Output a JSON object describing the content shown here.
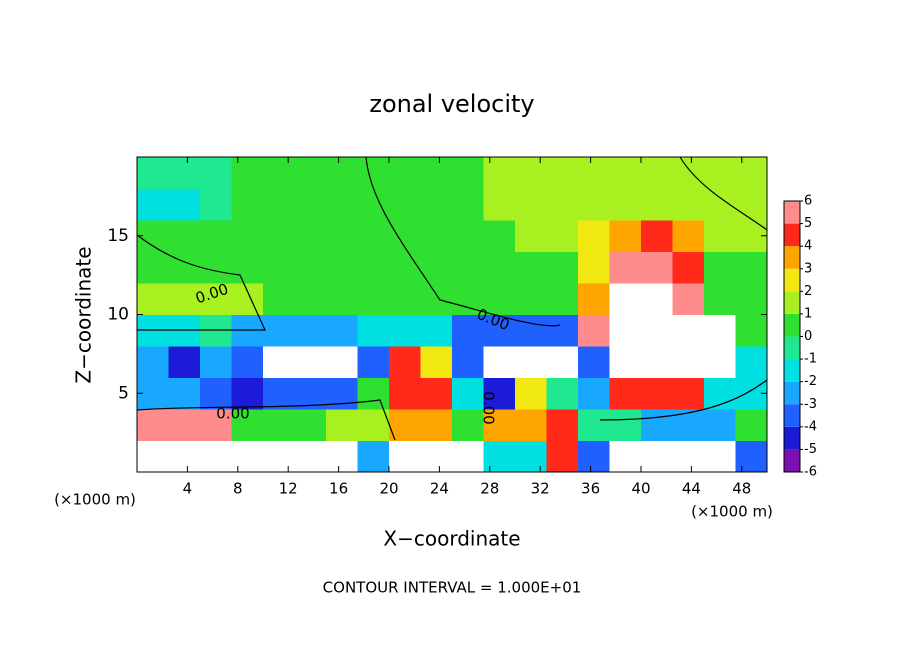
{
  "chart_data": {
    "type": "heatmap",
    "title": "zonal velocity",
    "x_label": "X−coordinate",
    "y_label": "Z−coordinate",
    "x_unit_label": "(×1000 m)",
    "footnote": "CONTOUR INTERVAL = 1.000E+01",
    "contour_labels": [
      "0.00",
      "0.00",
      "0.00",
      "0.00"
    ],
    "xlim": [
      0,
      50
    ],
    "ylim": [
      0,
      20
    ],
    "xticks": [
      4,
      8,
      12,
      16,
      20,
      24,
      28,
      32,
      36,
      40,
      44,
      48
    ],
    "yticks": [
      5,
      10,
      15
    ],
    "x": [
      1.25,
      3.75,
      6.25,
      8.75,
      11.25,
      13.75,
      16.25,
      18.75,
      21.25,
      23.75,
      26.25,
      28.75,
      31.25,
      33.75,
      36.25,
      38.75,
      41.25,
      43.75,
      46.25,
      48.75
    ],
    "y": [
      1,
      3,
      5,
      7,
      9,
      11,
      13,
      15,
      17,
      19
    ],
    "values": [
      [
        8,
        8,
        8,
        8,
        8,
        8,
        8,
        -3,
        -8,
        7,
        7,
        -2,
        -2,
        4,
        -4,
        -8,
        -8,
        -8,
        -8,
        -4
      ],
      [
        6,
        6,
        6,
        0,
        0,
        0,
        1,
        1,
        3,
        3,
        0,
        3,
        3,
        4,
        -1,
        -1,
        -3,
        -3,
        -3,
        0
      ],
      [
        -3,
        -3,
        -4,
        -5,
        -4,
        -4,
        -4,
        0,
        4,
        4,
        -2,
        -5,
        2,
        -1,
        -3,
        4,
        4,
        4,
        -2,
        -2
      ],
      [
        -3,
        -5,
        -3,
        -4,
        8,
        8,
        8,
        -4,
        4,
        2,
        -4,
        -8,
        8,
        8,
        -4,
        8,
        8,
        8,
        8,
        -2
      ],
      [
        -2,
        -2,
        -1,
        -3,
        -3,
        -3,
        -3,
        -2,
        -2,
        -2,
        -4,
        -4,
        -4,
        -4,
        5,
        7,
        7,
        7,
        7,
        0
      ],
      [
        1,
        1,
        1,
        1,
        0,
        0,
        0,
        0.5,
        0.5,
        0.5,
        0.5,
        0.5,
        0.5,
        0.5,
        3,
        7,
        7,
        5,
        0,
        0
      ],
      [
        0.5,
        0.5,
        0.5,
        0.5,
        0.5,
        0.5,
        0.5,
        0.5,
        0.5,
        0.5,
        0.5,
        0.5,
        0.5,
        0.5,
        2,
        5,
        5,
        4,
        0.5,
        0.5
      ],
      [
        0.5,
        0.5,
        0.5,
        0,
        0,
        0,
        0,
        0,
        0,
        0,
        0,
        0.5,
        1,
        1,
        2,
        3,
        4,
        3,
        1,
        1
      ],
      [
        -1.5,
        -1.5,
        -1,
        0,
        0,
        0,
        0,
        0,
        0,
        0.5,
        0.5,
        1,
        1.5,
        1.5,
        1.5,
        1.5,
        1.5,
        1.5,
        1.5,
        1
      ],
      [
        -0.5,
        -0.5,
        -0.5,
        0,
        0,
        0,
        0,
        0.5,
        0.5,
        0.5,
        0.5,
        1,
        1.5,
        1.5,
        1.5,
        1.5,
        1,
        1,
        1,
        1
      ]
    ],
    "colorbar": {
      "ticks": [
        -6,
        -5,
        -4,
        -3,
        -2,
        -1,
        0,
        1,
        2,
        3,
        4,
        5,
        6
      ],
      "colors": [
        "#7a10b0",
        "#1c1cd8",
        "#2060ff",
        "#18a8ff",
        "#00e0e0",
        "#20e890",
        "#30e030",
        "#a8f020",
        "#f0e810",
        "#ffa500",
        "#ff2a1a",
        "#ff8c8c"
      ],
      "out_of_range_color": "#ffffff"
    }
  }
}
